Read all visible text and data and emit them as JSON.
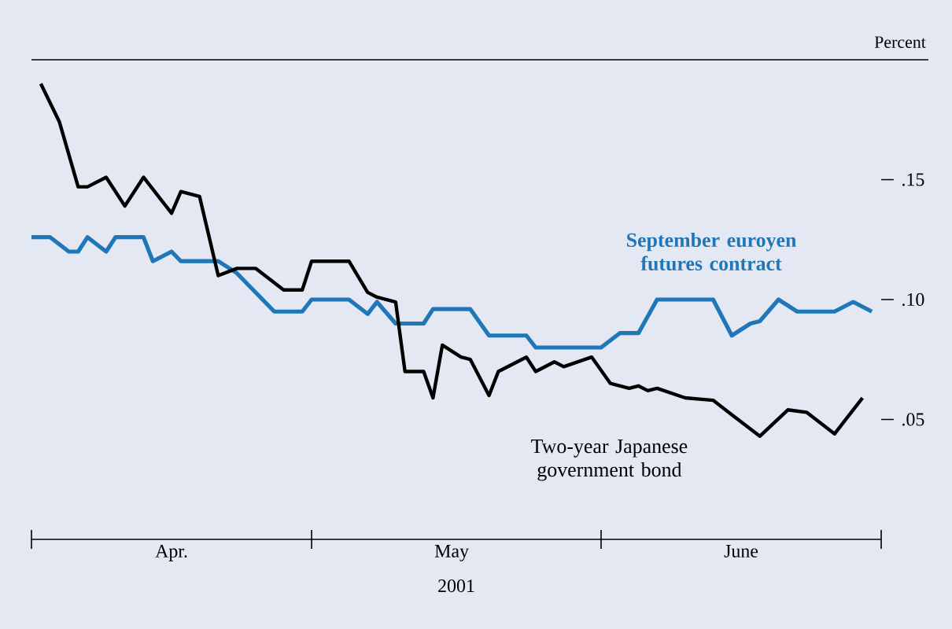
{
  "chart_data": {
    "type": "line",
    "xlabel": "2001",
    "ylabel": "Percent",
    "xlim": [
      "2001-04-01",
      "2001-07-01"
    ],
    "xticks": [
      {
        "value": "2001-04-01",
        "label": null
      },
      {
        "value": "2001-04-16",
        "label": "Apr."
      },
      {
        "value": "2001-05-01",
        "label": null
      },
      {
        "value": "2001-05-16",
        "label": "May"
      },
      {
        "value": "2001-06-01",
        "label": null
      },
      {
        "value": "2001-06-16",
        "label": "June"
      },
      {
        "value": "2001-07-01",
        "label": null
      }
    ],
    "ylim": [
      0,
      0.2
    ],
    "yticks": [
      {
        "value": 0.05,
        "label": ".05"
      },
      {
        "value": 0.1,
        "label": ".10"
      },
      {
        "value": 0.15,
        "label": ".15"
      }
    ],
    "series": [
      {
        "name": "September euroyen futures contract",
        "color": "#1f77b8",
        "x": [
          "2001-04-01",
          "2001-04-03",
          "2001-04-05",
          "2001-04-06",
          "2001-04-07",
          "2001-04-09",
          "2001-04-10",
          "2001-04-13",
          "2001-04-14",
          "2001-04-16",
          "2001-04-17",
          "2001-04-21",
          "2001-04-23",
          "2001-04-27",
          "2001-04-30",
          "2001-05-01",
          "2001-05-05",
          "2001-05-07",
          "2001-05-08",
          "2001-05-10",
          "2001-05-13",
          "2001-05-14",
          "2001-05-18",
          "2001-05-20",
          "2001-05-24",
          "2001-05-25",
          "2001-06-01",
          "2001-06-03",
          "2001-06-05",
          "2001-06-07",
          "2001-06-13",
          "2001-06-15",
          "2001-06-17",
          "2001-06-18",
          "2001-06-20",
          "2001-06-22",
          "2001-06-26",
          "2001-06-28",
          "2001-06-30"
        ],
        "values": [
          0.126,
          0.126,
          0.12,
          0.12,
          0.126,
          0.12,
          0.126,
          0.126,
          0.116,
          0.12,
          0.116,
          0.116,
          0.111,
          0.095,
          0.095,
          0.1,
          0.1,
          0.094,
          0.099,
          0.09,
          0.09,
          0.096,
          0.096,
          0.085,
          0.085,
          0.08,
          0.08,
          0.086,
          0.086,
          0.1,
          0.1,
          0.085,
          0.09,
          0.091,
          0.1,
          0.095,
          0.095,
          0.099,
          0.095
        ]
      },
      {
        "name": "Two-year Japanese government bond",
        "color": "#000000",
        "x": [
          "2001-04-02",
          "2001-04-04",
          "2001-04-06",
          "2001-04-07",
          "2001-04-09",
          "2001-04-11",
          "2001-04-13",
          "2001-04-16",
          "2001-04-17",
          "2001-04-19",
          "2001-04-21",
          "2001-04-23",
          "2001-04-25",
          "2001-04-28",
          "2001-04-30",
          "2001-05-01",
          "2001-05-05",
          "2001-05-07",
          "2001-05-08",
          "2001-05-10",
          "2001-05-11",
          "2001-05-13",
          "2001-05-14",
          "2001-05-15",
          "2001-05-17",
          "2001-05-18",
          "2001-05-20",
          "2001-05-21",
          "2001-05-24",
          "2001-05-25",
          "2001-05-27",
          "2001-05-28",
          "2001-05-31",
          "2001-06-02",
          "2001-06-04",
          "2001-06-05",
          "2001-06-06",
          "2001-06-07",
          "2001-06-10",
          "2001-06-13",
          "2001-06-15",
          "2001-06-18",
          "2001-06-21",
          "2001-06-23",
          "2001-06-26",
          "2001-06-29"
        ],
        "values": [
          0.19,
          0.174,
          0.147,
          0.147,
          0.151,
          0.139,
          0.151,
          0.136,
          0.145,
          0.143,
          0.11,
          0.113,
          0.113,
          0.104,
          0.104,
          0.116,
          0.116,
          0.103,
          0.101,
          0.099,
          0.07,
          0.07,
          0.059,
          0.081,
          0.076,
          0.075,
          0.06,
          0.07,
          0.076,
          0.07,
          0.074,
          0.072,
          0.076,
          0.065,
          0.063,
          0.064,
          0.062,
          0.063,
          0.059,
          0.058,
          0.052,
          0.043,
          0.054,
          0.053,
          0.044,
          0.059
        ]
      }
    ]
  }
}
